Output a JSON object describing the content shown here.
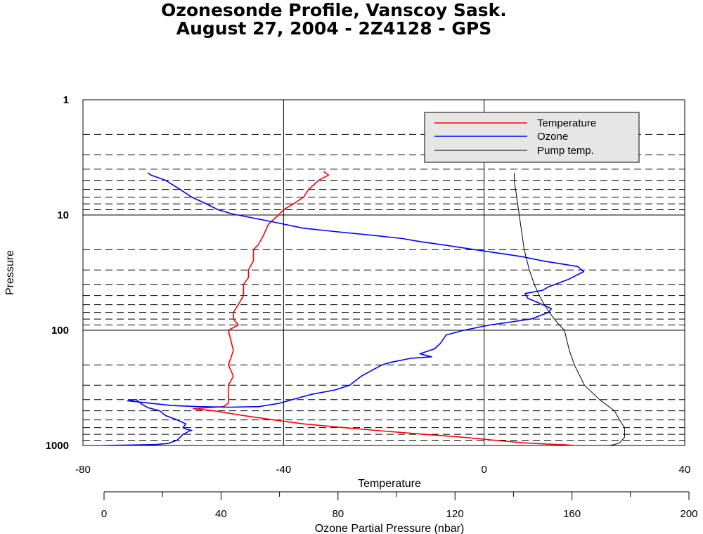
{
  "header": {
    "title_line1": "Ozonesonde Profile, Vanscoy Sask.",
    "title_line2": "August 27, 2004  -  2Z4128 - GPS"
  },
  "chart_data": {
    "type": "line",
    "title": "Ozonesonde Profile, Vanscoy Sask. / August 27, 2004 - 2Z4128 - GPS",
    "ylabel": "Pressure",
    "y_scale": "log",
    "y_inverted": true,
    "ylim": [
      1000,
      1
    ],
    "y_ticks": [
      1,
      10,
      100,
      1000
    ],
    "y_tick_labels": [
      "1",
      "10",
      "100",
      "1000"
    ],
    "x_axes": [
      {
        "name": "Temperature",
        "label": "Temperature",
        "lim": [
          -80,
          40
        ],
        "ticks": [
          -80,
          -40,
          0,
          40
        ],
        "tick_labels": [
          "-80",
          "-40",
          "0",
          "40"
        ]
      },
      {
        "name": "Ozone",
        "label": "Ozone Partial Pressure (nbar)",
        "lim": [
          0,
          200
        ],
        "ticks": [
          0,
          40,
          80,
          120,
          160,
          200
        ],
        "tick_labels": [
          "0",
          "40",
          "80",
          "120",
          "160",
          "200"
        ]
      }
    ],
    "grid": "solid at major ticks; dashed at intermediate log pressure levels",
    "legend": {
      "placement": "top-right",
      "entries": [
        "Temperature",
        "Ozone",
        "Pump temp."
      ]
    },
    "series": [
      {
        "name": "Temperature",
        "color": "#ff0000",
        "x_axis": "Temperature",
        "points": [
          [
            18,
            1000
          ],
          [
            16,
            985
          ],
          [
            13,
            975
          ],
          [
            8,
            950
          ],
          [
            2,
            900
          ],
          [
            -4,
            850
          ],
          [
            -12,
            800
          ],
          [
            -20,
            750
          ],
          [
            -28,
            700
          ],
          [
            -36,
            650
          ],
          [
            -42,
            600
          ],
          [
            -48,
            550
          ],
          [
            -54,
            500
          ],
          [
            -58,
            480
          ],
          [
            -55,
            470
          ],
          [
            -52,
            460
          ],
          [
            -51,
            430
          ],
          [
            -51,
            400
          ],
          [
            -51,
            350
          ],
          [
            -51,
            300
          ],
          [
            -50,
            250
          ],
          [
            -51,
            200
          ],
          [
            -50,
            150
          ],
          [
            -51,
            100
          ],
          [
            -49,
            90
          ],
          [
            -50,
            80
          ],
          [
            -50,
            70
          ],
          [
            -49,
            60
          ],
          [
            -48,
            50
          ],
          [
            -48,
            40
          ],
          [
            -47,
            35
          ],
          [
            -47,
            30
          ],
          [
            -46,
            25
          ],
          [
            -46,
            20
          ],
          [
            -45,
            18
          ],
          [
            -44,
            15
          ],
          [
            -43,
            12
          ],
          [
            -41,
            10
          ],
          [
            -40,
            9
          ],
          [
            -38,
            8
          ],
          [
            -36,
            7
          ],
          [
            -35,
            6
          ],
          [
            -33,
            5
          ],
          [
            -31,
            4.5
          ],
          [
            -32,
            4.2
          ]
        ]
      },
      {
        "name": "Ozone",
        "color": "#0000ff",
        "x_axis": "Ozone",
        "points": [
          [
            0,
            1000
          ],
          [
            10,
            990
          ],
          [
            18,
            980
          ],
          [
            22,
            960
          ],
          [
            25,
            900
          ],
          [
            26,
            850
          ],
          [
            27,
            800
          ],
          [
            28,
            780
          ],
          [
            29,
            750
          ],
          [
            30,
            740
          ],
          [
            28,
            720
          ],
          [
            27,
            700
          ],
          [
            28,
            650
          ],
          [
            25,
            600
          ],
          [
            21,
            550
          ],
          [
            19,
            500
          ],
          [
            15,
            470
          ],
          [
            13,
            440
          ],
          [
            12,
            420
          ],
          [
            11,
            400
          ],
          [
            8,
            410
          ],
          [
            12,
            420
          ],
          [
            23,
            450
          ],
          [
            32,
            460
          ],
          [
            43,
            465
          ],
          [
            53,
            460
          ],
          [
            60,
            430
          ],
          [
            66,
            390
          ],
          [
            71,
            360
          ],
          [
            79,
            330
          ],
          [
            84,
            300
          ],
          [
            88,
            250
          ],
          [
            92,
            220
          ],
          [
            95,
            200
          ],
          [
            98,
            190
          ],
          [
            105,
            175
          ],
          [
            112,
            170
          ],
          [
            108,
            160
          ],
          [
            113,
            145
          ],
          [
            115,
            130
          ],
          [
            117,
            110
          ],
          [
            123,
            100
          ],
          [
            132,
            90
          ],
          [
            146,
            80
          ],
          [
            152,
            70
          ],
          [
            153,
            65
          ],
          [
            148,
            57
          ],
          [
            145,
            53
          ],
          [
            144,
            48
          ],
          [
            150,
            45
          ],
          [
            152,
            42
          ],
          [
            159,
            36
          ],
          [
            164,
            31
          ],
          [
            162,
            28
          ],
          [
            150,
            25
          ],
          [
            143,
            23
          ],
          [
            138,
            22
          ],
          [
            127,
            20
          ],
          [
            115,
            18
          ],
          [
            108,
            17
          ],
          [
            102,
            16
          ],
          [
            92,
            15
          ],
          [
            80,
            14
          ],
          [
            68,
            13
          ],
          [
            58,
            11.5
          ],
          [
            50,
            10.5
          ],
          [
            44,
            9.8
          ],
          [
            39,
            9
          ],
          [
            35,
            8
          ],
          [
            30,
            7
          ],
          [
            26,
            6
          ],
          [
            21,
            5
          ],
          [
            16,
            4.5
          ],
          [
            15,
            4.3
          ]
        ]
      },
      {
        "name": "Pump temp.",
        "color": "#000000",
        "x_axis": "Temperature",
        "points": [
          [
            25,
            1000
          ],
          [
            26,
            980
          ],
          [
            27,
            950
          ],
          [
            27.5,
            900
          ],
          [
            28,
            850
          ],
          [
            28,
            800
          ],
          [
            28,
            700
          ],
          [
            27,
            600
          ],
          [
            26,
            500
          ],
          [
            23,
            400
          ],
          [
            20,
            300
          ],
          [
            18,
            200
          ],
          [
            17,
            150
          ],
          [
            16,
            100
          ],
          [
            15,
            90
          ],
          [
            14,
            80
          ],
          [
            13,
            70
          ],
          [
            12,
            60
          ],
          [
            11,
            50
          ],
          [
            10,
            40
          ],
          [
            9,
            30
          ],
          [
            8,
            20
          ],
          [
            7,
            10
          ],
          [
            6.5,
            7
          ],
          [
            6,
            5
          ],
          [
            6,
            4.3
          ]
        ]
      }
    ]
  }
}
